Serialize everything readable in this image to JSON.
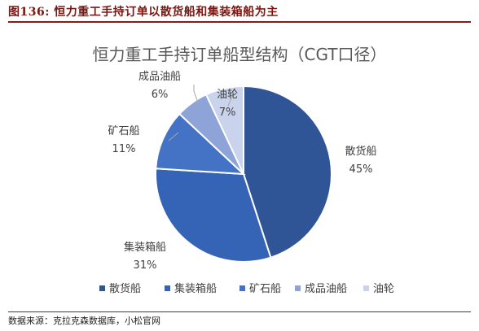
{
  "figure": {
    "caption": "图136: 恒力重工手持订单以散货船和集装箱船为主",
    "source": "数据来源：克拉克森数据库，小松官网"
  },
  "chart_data": {
    "type": "pie",
    "title": "恒力重工手持订单船型结构（CGT口径）",
    "slices": [
      {
        "label": "散货船",
        "value": 45,
        "percent_label": "45%",
        "color": "#2f5597"
      },
      {
        "label": "集装箱船",
        "value": 31,
        "percent_label": "31%",
        "color": "#3563b5"
      },
      {
        "label": "矿石船",
        "value": 11,
        "percent_label": "11%",
        "color": "#4472c4"
      },
      {
        "label": "成品油船",
        "value": 6,
        "percent_label": "6%",
        "color": "#8ea4d8"
      },
      {
        "label": "油轮",
        "value": 7,
        "percent_label": "7%",
        "color": "#c9d3ec"
      }
    ],
    "legend_position": "bottom",
    "start_angle_deg": 0,
    "direction": "clockwise"
  }
}
